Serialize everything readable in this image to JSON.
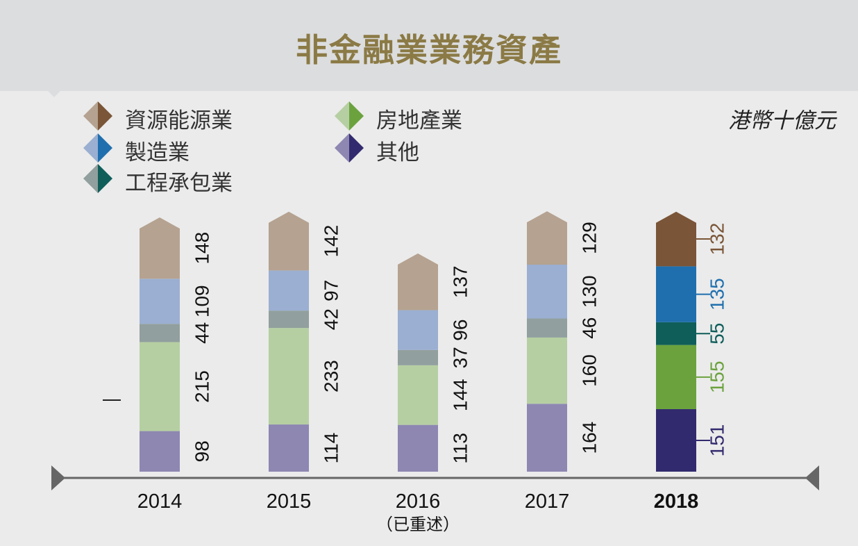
{
  "title": "非金融業業務資產",
  "unit": "港幣十億元",
  "legend": [
    {
      "label": "資源能源業",
      "light": "#b5a290",
      "dark": "#7a5537"
    },
    {
      "label": "房地產業",
      "light": "#b6cfa2",
      "dark": "#6ba23e"
    },
    {
      "label": "製造業",
      "light": "#9aafd1",
      "dark": "#1f6fae"
    },
    {
      "label": "其他",
      "light": "#8d87b2",
      "dark": "#322a6e"
    },
    {
      "label": "工程承包業",
      "light": "#919f9e",
      "dark": "#0f5e5a"
    }
  ],
  "chart_data": {
    "type": "bar",
    "stacked": true,
    "categories": [
      "2014",
      "2015",
      "2016",
      "2017",
      "2018"
    ],
    "category_notes": [
      "",
      "",
      "（已重述）",
      "",
      ""
    ],
    "highlight_category": "2018",
    "series": [
      {
        "name": "其他",
        "values": [
          98,
          114,
          113,
          164,
          151
        ],
        "color": "#8d87b2",
        "highlight_color": "#322a6e"
      },
      {
        "name": "房地產業",
        "values": [
          215,
          233,
          144,
          160,
          155
        ],
        "color": "#b6cfa2",
        "highlight_color": "#6ba23e"
      },
      {
        "name": "工程承包業",
        "values": [
          44,
          42,
          37,
          46,
          55
        ],
        "color": "#919f9e",
        "highlight_color": "#0f5e5a"
      },
      {
        "name": "製造業",
        "values": [
          109,
          97,
          96,
          130,
          135
        ],
        "color": "#9aafd1",
        "highlight_color": "#1f6fae"
      },
      {
        "name": "資源能源業",
        "values": [
          148,
          142,
          137,
          129,
          132
        ],
        "color": "#b5a290",
        "highlight_color": "#7a5537"
      }
    ],
    "ylim": [
      0,
      630
    ],
    "grid": false,
    "legend_position": "top-left"
  }
}
